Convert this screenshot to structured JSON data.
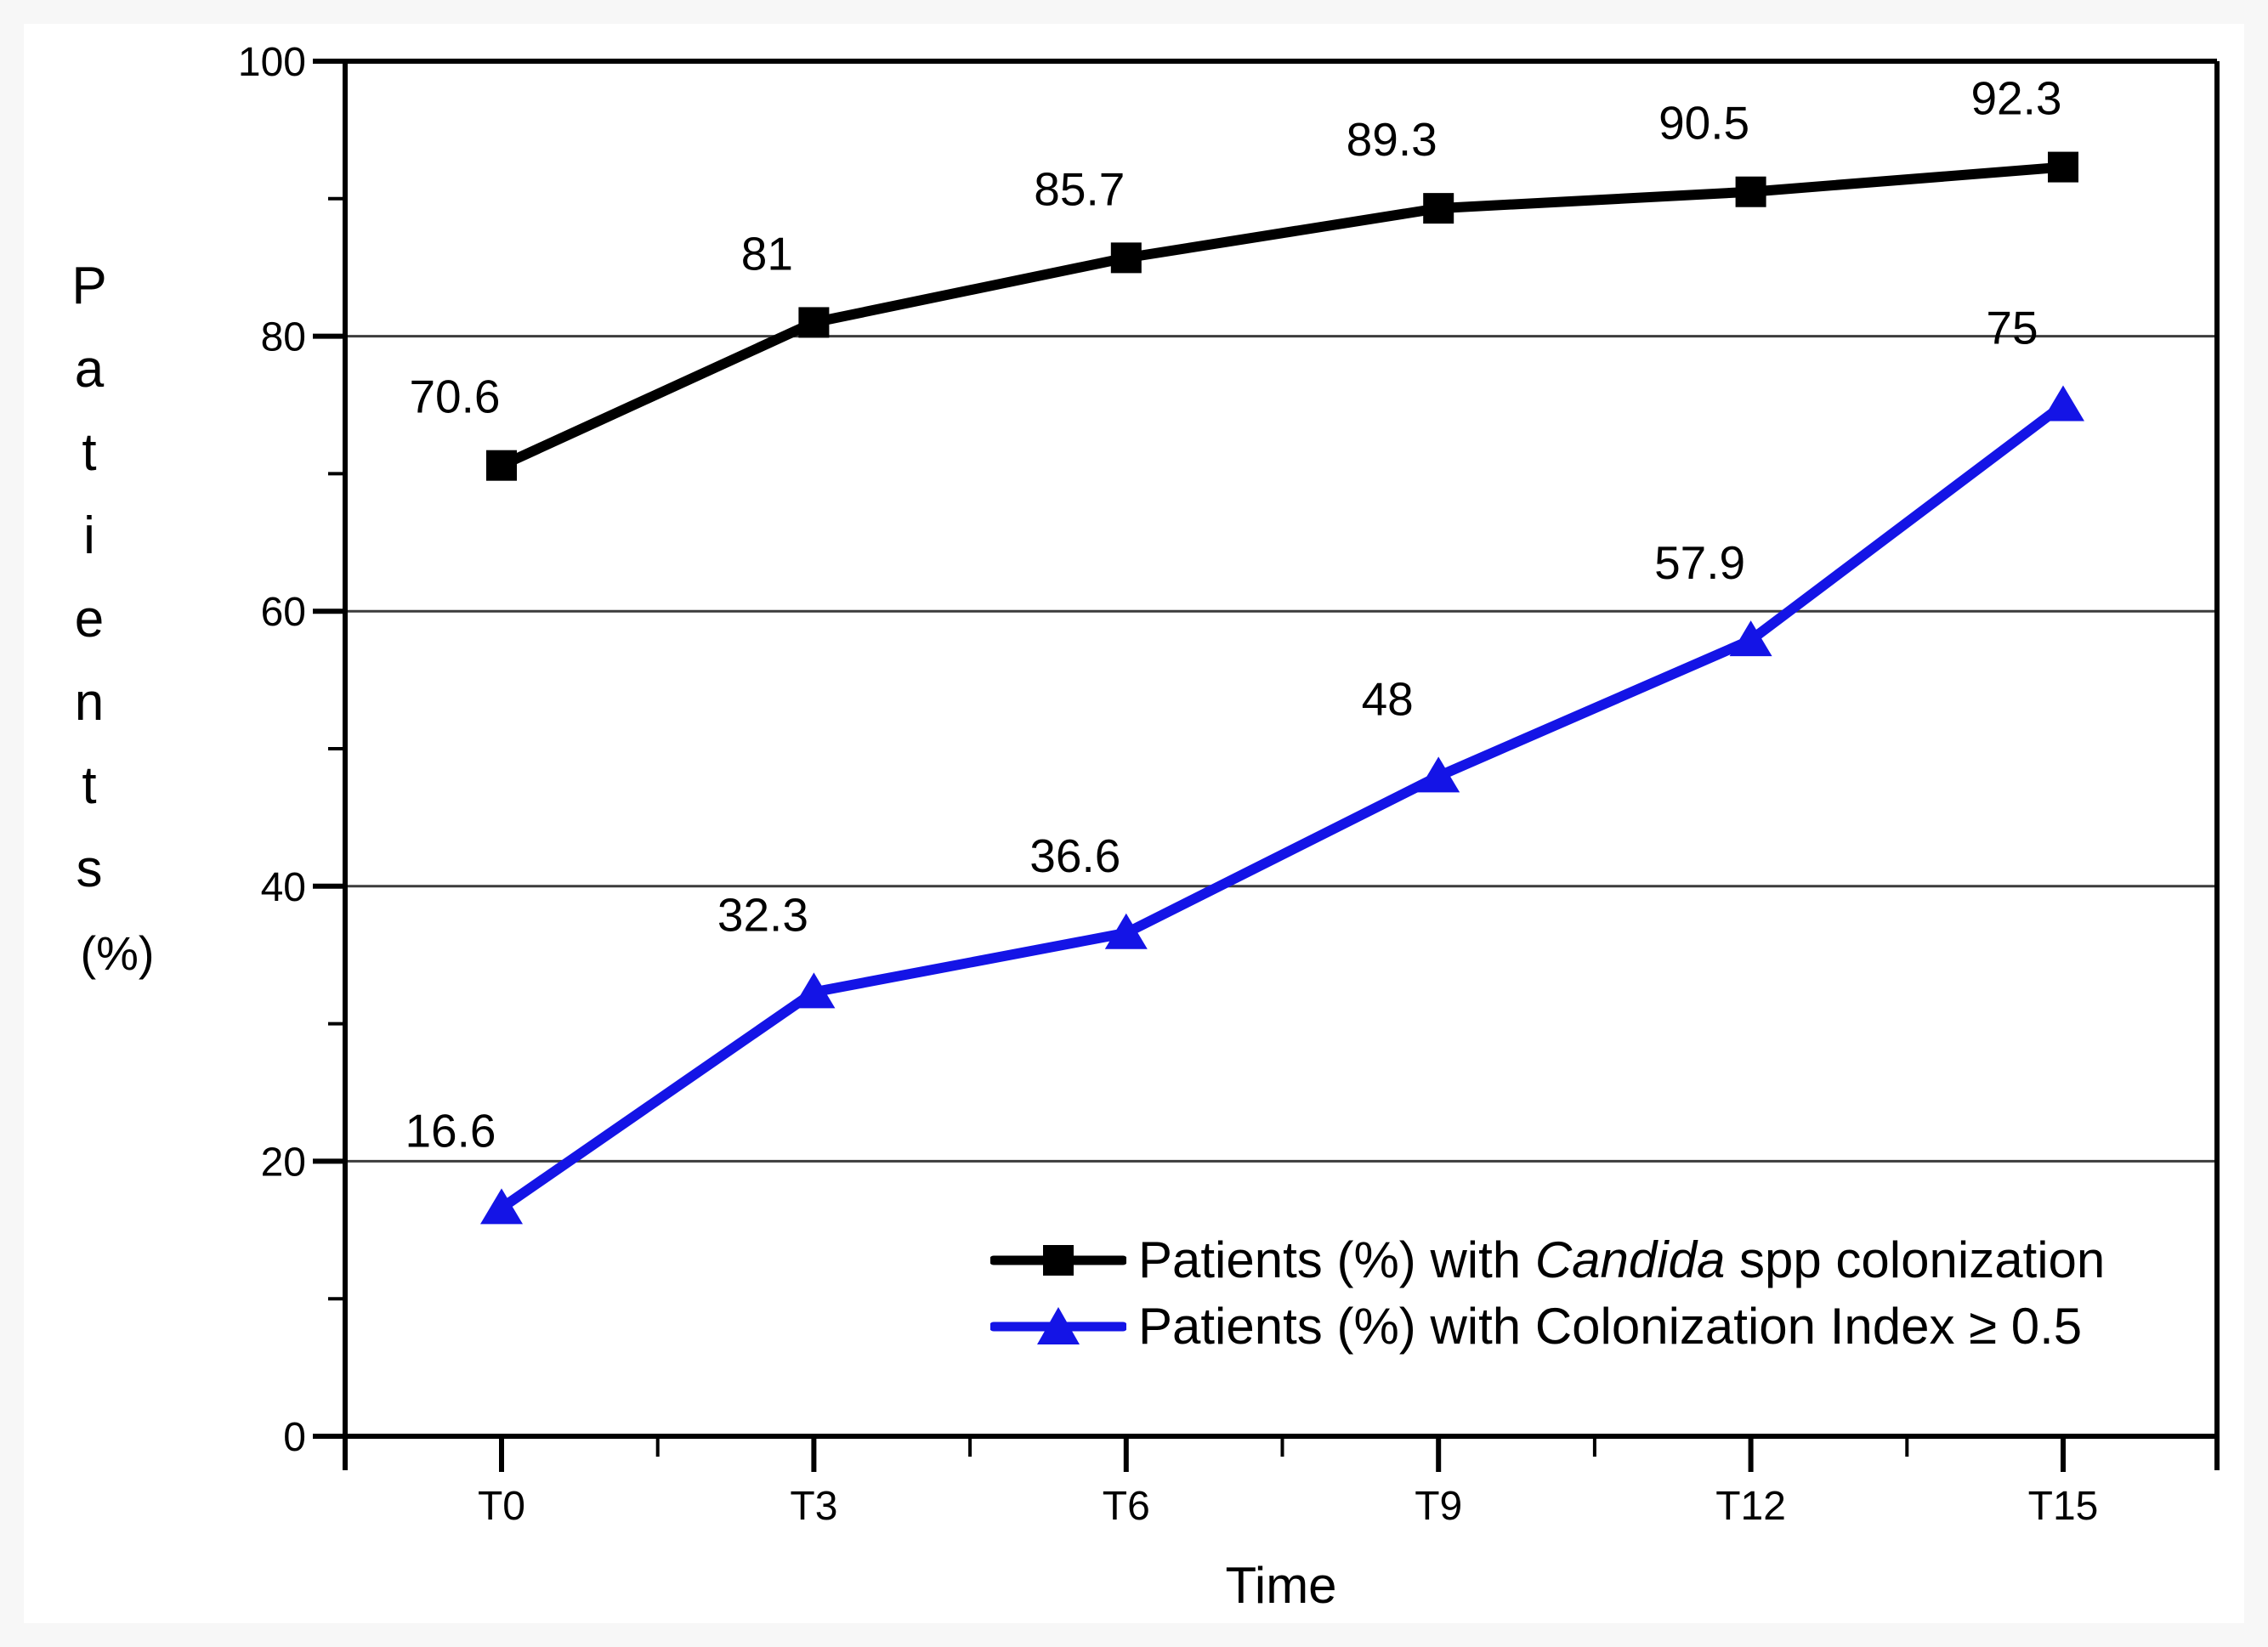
{
  "figure": {
    "background": "#f7f7f7",
    "panel_background": "#ffffff"
  },
  "chart_data": {
    "type": "line",
    "title": "",
    "xlabel": "Time",
    "ylabel": "Patients",
    "ylabel_unit": "(%)",
    "categories": [
      "T0",
      "T3",
      "T6",
      "T9",
      "T12",
      "T15"
    ],
    "y_axis": {
      "min": 0,
      "max": 100,
      "tick_labels": [
        "0",
        "20",
        "40",
        "60",
        "80",
        "100"
      ],
      "major_ticks": [
        0,
        20,
        40,
        60,
        80,
        100
      ],
      "minor_ticks": [
        10,
        30,
        50,
        70,
        90
      ],
      "gridlines": [
        20,
        40,
        60,
        80
      ],
      "grid_color": "#3c3c3c"
    },
    "series": [
      {
        "id": "candida",
        "marker": "square",
        "color": "#000000",
        "values": [
          70.6,
          81,
          85.7,
          89.3,
          90.5,
          92.3
        ],
        "point_labels": [
          "70.6",
          "81",
          "85.7",
          "89.3",
          "90.5",
          "92.3"
        ]
      },
      {
        "id": "colonization-index",
        "marker": "triangle",
        "color": "#1414e6",
        "values": [
          16.6,
          32.3,
          36.6,
          48,
          57.9,
          75
        ],
        "point_labels": [
          "16.6",
          "32.3",
          "36.6",
          "48",
          "57.9",
          "75"
        ]
      }
    ],
    "legend": {
      "position": "inside-bottom-right",
      "items": [
        {
          "series": "candida",
          "parts": [
            {
              "text": "Patients (%) with "
            },
            {
              "text": "Candida",
              "italic": true
            },
            {
              "text": " spp colonization"
            }
          ]
        },
        {
          "series": "colonization-index",
          "parts": [
            {
              "text": "Patients (%) with Colonization Index "
            },
            {
              "text": "≥"
            },
            {
              "text": " 0.5"
            }
          ]
        }
      ]
    }
  }
}
